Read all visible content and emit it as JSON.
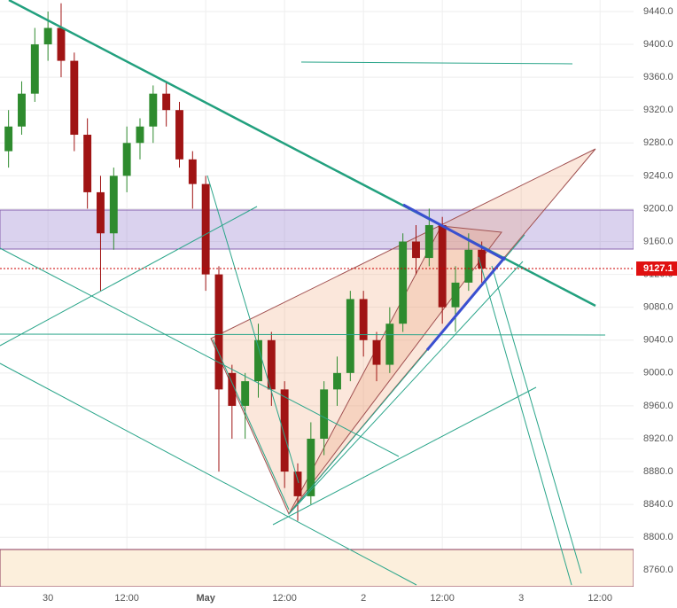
{
  "chart_data": {
    "type": "candlestick",
    "x": [
      -6,
      -4,
      -2,
      0,
      2,
      4,
      6,
      8,
      10,
      12,
      14,
      16,
      18,
      20,
      22,
      24,
      26,
      28,
      30,
      32,
      34,
      36,
      38,
      40,
      42,
      44,
      46,
      48,
      50,
      52,
      54,
      56,
      58,
      60,
      62,
      64,
      66
    ],
    "open": [
      9270,
      9300,
      9340,
      9400,
      9420,
      9380,
      9290,
      9220,
      9170,
      9240,
      9280,
      9300,
      9340,
      9320,
      9260,
      9230,
      9120,
      9000,
      8960,
      8990,
      9040,
      8980,
      8880,
      8850,
      8920,
      8980,
      9000,
      9090,
      9040,
      9010,
      9060,
      9160,
      9140,
      9180,
      9080,
      9110,
      9150
    ],
    "high": [
      9320,
      9355,
      9420,
      9440,
      9450,
      9390,
      9310,
      9240,
      9250,
      9300,
      9310,
      9350,
      9355,
      9330,
      9270,
      9240,
      9130,
      9010,
      9000,
      9060,
      9050,
      8990,
      8890,
      8940,
      8990,
      9020,
      9100,
      9100,
      9050,
      9080,
      9170,
      9180,
      9200,
      9190,
      9130,
      9170,
      9160
    ],
    "low": [
      9250,
      9290,
      9330,
      9380,
      9360,
      9270,
      9200,
      9100,
      9150,
      9220,
      9260,
      9280,
      9300,
      9250,
      9200,
      9100,
      8880,
      8920,
      8920,
      8970,
      8960,
      8860,
      8820,
      8840,
      8900,
      8960,
      8990,
      9020,
      8990,
      9000,
      9050,
      9120,
      9130,
      9060,
      9050,
      9100,
      9110
    ],
    "close": [
      9300,
      9340,
      9400,
      9420,
      9380,
      9290,
      9220,
      9170,
      9240,
      9280,
      9300,
      9340,
      9320,
      9260,
      9230,
      9120,
      8980,
      8960,
      8990,
      9040,
      8980,
      8880,
      8850,
      8920,
      8980,
      9000,
      9090,
      9040,
      9010,
      9060,
      9160,
      9140,
      9180,
      9080,
      9110,
      9150,
      9127.1
    ],
    "up_color": "#2e8b2e",
    "down_color": "#a01414",
    "last_price": 9127.1,
    "xlim": [
      -7.3,
      89.1
    ],
    "xticks": [
      {
        "value": 0,
        "label": "30"
      },
      {
        "value": 12,
        "label": "12:00"
      },
      {
        "value": 24,
        "label": "May"
      },
      {
        "value": 36,
        "label": "12:00"
      },
      {
        "value": 48,
        "label": "2"
      },
      {
        "value": 60,
        "label": "12:00"
      },
      {
        "value": 72,
        "label": "3"
      },
      {
        "value": 84,
        "label": "12:00"
      }
    ],
    "ylim": [
      8742,
      9454
    ],
    "yticks": [
      {
        "value": 8760,
        "label": "8760.0"
      },
      {
        "value": 8800,
        "label": "8800.0"
      },
      {
        "value": 8840,
        "label": "8840.0"
      },
      {
        "value": 8880,
        "label": "8880.0"
      },
      {
        "value": 8920,
        "label": "8920.0"
      },
      {
        "value": 8960,
        "label": "8960.0"
      },
      {
        "value": 9000,
        "label": "9000.0"
      },
      {
        "value": 9040,
        "label": "9040.0"
      },
      {
        "value": 9080,
        "label": "9080.0"
      },
      {
        "value": 9120,
        "label": "9120.0"
      },
      {
        "value": 9160,
        "label": "9160.0"
      },
      {
        "value": 9200,
        "label": "9200.0"
      },
      {
        "value": 9240,
        "label": "9240.0"
      },
      {
        "value": 9280,
        "label": "9280.0"
      },
      {
        "value": 9320,
        "label": "9320.0"
      },
      {
        "value": 9360,
        "label": "9360.0"
      },
      {
        "value": 9400,
        "label": "9400.0"
      },
      {
        "value": 9440,
        "label": "9440.0"
      }
    ],
    "grid": true
  }
}
